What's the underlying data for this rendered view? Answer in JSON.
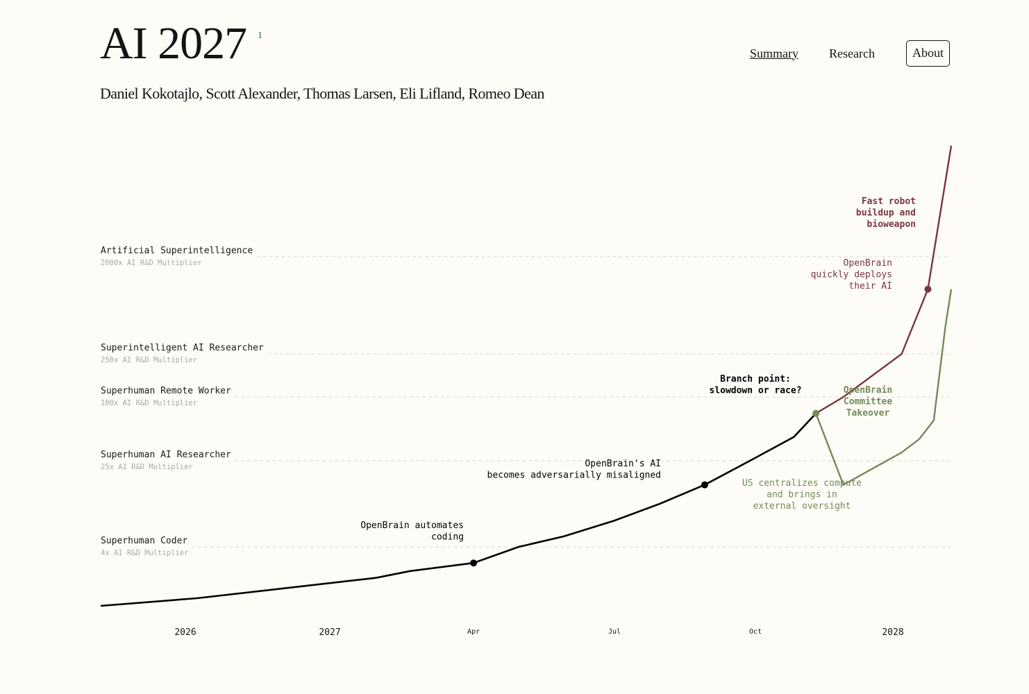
{
  "site": {
    "title": "AI 2027",
    "footnote_mark": "1",
    "authors": "Daniel Kokotajlo, Scott Alexander, Thomas Larsen, Eli Lifland, Romeo Dean"
  },
  "nav": {
    "summary": "Summary",
    "research": "Research",
    "about": "About"
  },
  "colors": {
    "main": "#000000",
    "race": "#7b3540",
    "slowdown": "#728a5a",
    "grid": "#d8d8d4",
    "muted": "#a8a8a8"
  },
  "chart_data": {
    "type": "line",
    "title": "",
    "xlabel": "",
    "ylabel": "",
    "x_ticks": [
      {
        "label": "2026",
        "x": 2026.0
      },
      {
        "label": "2027",
        "x": 2027.0
      },
      {
        "label": "Apr",
        "x": 2027.25
      },
      {
        "label": "Jul",
        "x": 2027.5
      },
      {
        "label": "Oct",
        "x": 2027.75
      },
      {
        "label": "2028",
        "x": 2028.0
      }
    ],
    "milestones": [
      {
        "name": "Superhuman Coder",
        "sub": "4x AI R&D Multiplier",
        "level": 4
      },
      {
        "name": "Superhuman AI Researcher",
        "sub": "25x AI R&D Multiplier",
        "level": 25
      },
      {
        "name": "Superhuman Remote Worker",
        "sub": "100x AI R&D Multiplier",
        "level": 100
      },
      {
        "name": "Superintelligent AI Researcher",
        "sub": "250x AI R&D Multiplier",
        "level": 250
      },
      {
        "name": "Artificial Superintelligence",
        "sub": "2000x AI R&D Multiplier",
        "level": 2000
      }
    ],
    "series": [
      {
        "key": "main",
        "color": "#000000",
        "points": [
          [
            2025.4,
            1.3
          ],
          [
            2026.08,
            1.6
          ],
          [
            2027.08,
            2.3
          ],
          [
            2027.14,
            2.6
          ],
          [
            2027.25,
            3.0
          ],
          [
            2027.33,
            4.0
          ],
          [
            2027.41,
            5.0
          ],
          [
            2027.5,
            7.0
          ],
          [
            2027.58,
            10.0
          ],
          [
            2027.66,
            15.0
          ],
          [
            2027.74,
            25.0
          ],
          [
            2027.82,
            42.0
          ],
          [
            2027.86,
            70.0
          ]
        ]
      },
      {
        "key": "race",
        "color": "#7b3540",
        "points": [
          [
            2027.86,
            70.0
          ],
          [
            2027.91,
            100.0
          ],
          [
            2028.03,
            250.0
          ],
          [
            2028.12,
            1000.0
          ],
          [
            2028.2,
            8000.0
          ]
        ]
      },
      {
        "key": "slowdown",
        "color": "#728a5a",
        "points": [
          [
            2027.86,
            70.0
          ],
          [
            2027.91,
            15.0
          ],
          [
            2028.03,
            30.0
          ],
          [
            2028.09,
            40.0
          ],
          [
            2028.14,
            60.0
          ],
          [
            2028.18,
            450.0
          ],
          [
            2028.2,
            1000.0
          ]
        ]
      }
    ],
    "events": [
      {
        "label": [
          "OpenBrain automates",
          "coding"
        ],
        "x": 2027.25,
        "level": 3.0,
        "series": "main"
      },
      {
        "label": [
          "OpenBrain's AI",
          "becomes adversarially misaligned"
        ],
        "x": 2027.66,
        "level": 15.0,
        "series": "main"
      },
      {
        "label": [
          "Branch point:",
          "slowdown or race?"
        ],
        "x": 2027.86,
        "level": 70.0,
        "series": "slowdown"
      },
      {
        "label": [
          "OpenBrain",
          "quickly deploys",
          "their AI"
        ],
        "x": 2028.12,
        "level": 1000.0,
        "series": "race"
      }
    ],
    "annotations": [
      {
        "label": [
          "Fast robot",
          "buildup and",
          "bioweapon"
        ],
        "series": "race"
      },
      {
        "label": [
          "OpenBrain",
          "Committee",
          "Takeover"
        ],
        "series": "slowdown"
      },
      {
        "label": [
          "US centralizes compute",
          "and brings in",
          "external oversight"
        ],
        "series": "slowdown"
      }
    ],
    "y_scale": "log",
    "grid": "dashed milestone lines",
    "legend": "none"
  }
}
